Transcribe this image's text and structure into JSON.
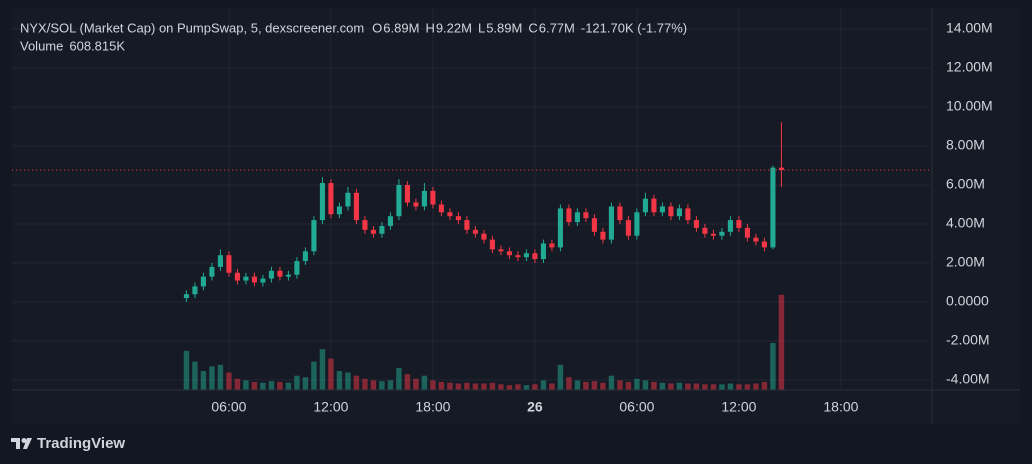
{
  "chart_data": {
    "type": "candlestick",
    "title": "NYX/SOL (Market Cap) on PumpSwap, 5, dexscreener.com",
    "legend_items": [
      {
        "label": "O",
        "value": "6.89M"
      },
      {
        "label": "H",
        "value": "9.22M"
      },
      {
        "label": "L",
        "value": "5.89M"
      },
      {
        "label": "C",
        "value": "6.77M"
      }
    ],
    "change": "-121.70K (-1.77%)",
    "volume_label": "Volume",
    "volume_value": "608.815K",
    "up_color": "#22ab94",
    "down_color": "#f23645",
    "grid": true,
    "xlim": [
      -6.76,
      47.24
    ],
    "xticks": [
      {
        "value": 6,
        "label": "06:00"
      },
      {
        "value": 12,
        "label": "12:00"
      },
      {
        "value": 18,
        "label": "18:00"
      },
      {
        "value": 24,
        "label": "26"
      },
      {
        "value": 30,
        "label": "06:00"
      },
      {
        "value": 36,
        "label": "12:00"
      },
      {
        "value": 42,
        "label": "18:00"
      }
    ],
    "ylim": [
      -4500000,
      15000000
    ],
    "yticks": [
      {
        "value": 14000000,
        "label": "14.00M"
      },
      {
        "value": 12000000,
        "label": "12.00M"
      },
      {
        "value": 10000000,
        "label": "10.00M"
      },
      {
        "value": 8000000,
        "label": "8.00M"
      },
      {
        "value": 6000000,
        "label": "6.00M"
      },
      {
        "value": 4000000,
        "label": "4.00M"
      },
      {
        "value": 2000000,
        "label": "2.00M"
      },
      {
        "value": 0,
        "label": "0.0000"
      },
      {
        "value": -2000000,
        "label": "-2.00M"
      },
      {
        "value": -4000000,
        "label": "-4.00M"
      }
    ],
    "x": [
      3.5,
      4,
      4.5,
      5,
      5.5,
      6,
      6.5,
      7,
      7.5,
      8,
      8.5,
      9,
      9.5,
      10,
      10.5,
      11,
      11.5,
      12,
      12.5,
      13,
      13.5,
      14,
      14.5,
      15,
      15.5,
      16,
      16.5,
      17,
      17.5,
      18,
      18.5,
      19,
      19.5,
      20,
      20.5,
      21,
      21.5,
      22,
      22.5,
      23,
      23.5,
      24,
      24.5,
      25,
      25.5,
      26,
      26.5,
      27,
      27.5,
      28,
      28.5,
      29,
      29.5,
      30,
      30.5,
      31,
      31.5,
      32,
      32.5,
      33,
      33.5,
      34,
      34.5,
      35,
      35.5,
      36,
      36.5,
      37,
      37.5,
      38,
      38.5
    ],
    "open": [
      200000,
      400000,
      800000,
      1300000,
      1800000,
      2400000,
      1500000,
      1100000,
      1300000,
      1000000,
      1200000,
      1600000,
      1300000,
      1400000,
      2100000,
      2600000,
      4200000,
      6100000,
      4500000,
      4900000,
      5600000,
      4200000,
      3700000,
      3500000,
      3900000,
      4400000,
      6000000,
      5100000,
      4900000,
      5700000,
      5000000,
      4600000,
      4400000,
      4200000,
      3700000,
      3500000,
      3200000,
      2700000,
      2600000,
      2400000,
      2300000,
      2500000,
      2200000,
      3000000,
      2800000,
      4800000,
      4100000,
      4600000,
      4300000,
      3600000,
      3200000,
      4900000,
      4200000,
      3400000,
      4600000,
      5300000,
      4600000,
      4900000,
      4400000,
      4800000,
      4200000,
      3800000,
      3500000,
      3400000,
      3600000,
      4200000,
      3800000,
      3300000,
      3100000,
      2800000,
      6890000
    ],
    "high": [
      600000,
      1000000,
      1500000,
      2000000,
      2700000,
      2600000,
      1700000,
      1500000,
      1500000,
      1400000,
      1800000,
      1800000,
      1600000,
      2300000,
      2800000,
      4400000,
      6400000,
      6300000,
      5100000,
      5900000,
      5800000,
      4400000,
      3900000,
      4100000,
      4600000,
      6300000,
      6200000,
      5300000,
      6100000,
      5900000,
      5200000,
      4800000,
      4600000,
      4400000,
      3900000,
      3700000,
      3400000,
      2900000,
      2800000,
      2600000,
      2700000,
      2700000,
      3200000,
      3200000,
      5000000,
      5000000,
      4800000,
      4800000,
      4500000,
      3800000,
      5100000,
      5100000,
      4400000,
      4800000,
      5600000,
      5500000,
      5100000,
      5100000,
      5000000,
      5000000,
      4400000,
      4000000,
      3700000,
      3800000,
      4400000,
      4400000,
      4000000,
      3500000,
      3300000,
      7000000,
      9220000
    ],
    "low": [
      0,
      200000,
      600000,
      1100000,
      1600000,
      1300000,
      900000,
      900000,
      800000,
      800000,
      1000000,
      1100000,
      1100000,
      1200000,
      1900000,
      2400000,
      4000000,
      4300000,
      4300000,
      4700000,
      4000000,
      3500000,
      3300000,
      3300000,
      3700000,
      4200000,
      4900000,
      4700000,
      4700000,
      4800000,
      4400000,
      4200000,
      4000000,
      3500000,
      3300000,
      3000000,
      2500000,
      2400000,
      2200000,
      2100000,
      2100000,
      2000000,
      2000000,
      2600000,
      2600000,
      3900000,
      3900000,
      4100000,
      3400000,
      3000000,
      3000000,
      4000000,
      3200000,
      3200000,
      4400000,
      4400000,
      4400000,
      4200000,
      4200000,
      4000000,
      3600000,
      3300000,
      3200000,
      3200000,
      3400000,
      3600000,
      3100000,
      2900000,
      2600000,
      2700000,
      5890000
    ],
    "close": [
      400000,
      800000,
      1300000,
      1800000,
      2400000,
      1500000,
      1100000,
      1300000,
      1000000,
      1200000,
      1600000,
      1300000,
      1400000,
      2100000,
      2600000,
      4200000,
      6100000,
      4500000,
      4900000,
      5600000,
      4200000,
      3700000,
      3500000,
      3900000,
      4400000,
      6000000,
      5100000,
      4900000,
      5700000,
      5000000,
      4600000,
      4400000,
      4200000,
      3700000,
      3500000,
      3200000,
      2700000,
      2600000,
      2400000,
      2300000,
      2500000,
      2200000,
      3000000,
      2800000,
      4800000,
      4100000,
      4600000,
      4300000,
      3600000,
      3200000,
      4900000,
      4200000,
      3400000,
      4600000,
      5300000,
      4600000,
      4900000,
      4400000,
      4800000,
      4200000,
      3800000,
      3500000,
      3400000,
      3600000,
      4200000,
      3800000,
      3300000,
      3100000,
      2800000,
      6890000,
      6770000
    ],
    "volume": [
      250000,
      180000,
      120000,
      150000,
      160000,
      110000,
      70000,
      60000,
      50000,
      45000,
      55000,
      50000,
      45000,
      90000,
      80000,
      180000,
      260000,
      200000,
      120000,
      110000,
      90000,
      70000,
      60000,
      55000,
      60000,
      140000,
      100000,
      70000,
      90000,
      60000,
      50000,
      45000,
      40000,
      45000,
      40000,
      40000,
      45000,
      35000,
      30000,
      35000,
      30000,
      35000,
      60000,
      40000,
      160000,
      80000,
      60000,
      50000,
      55000,
      45000,
      90000,
      60000,
      50000,
      70000,
      60000,
      50000,
      45000,
      40000,
      45000,
      40000,
      40000,
      35000,
      35000,
      35000,
      40000,
      35000,
      35000,
      40000,
      50000,
      300000,
      608815
    ]
  },
  "branding": "TradingView"
}
